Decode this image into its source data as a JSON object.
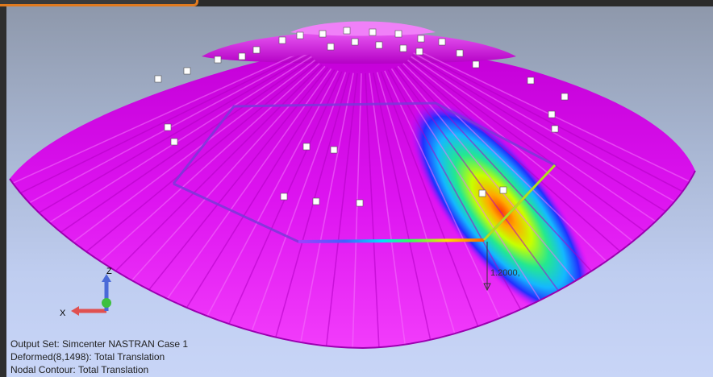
{
  "axes": {
    "x_label": "X",
    "z_label": "Z"
  },
  "annotation": {
    "value": "1.2000,"
  },
  "status": {
    "output_set": "Output Set: Simcenter NASTRAN Case 1",
    "deformed": "Deformed(8,1498): Total Translation",
    "contour": "Nodal Contour: Total Translation"
  },
  "colors": {
    "accent": "#e07a1f",
    "contour_low": "#ff00ff",
    "contour_high": "#ff3300"
  }
}
